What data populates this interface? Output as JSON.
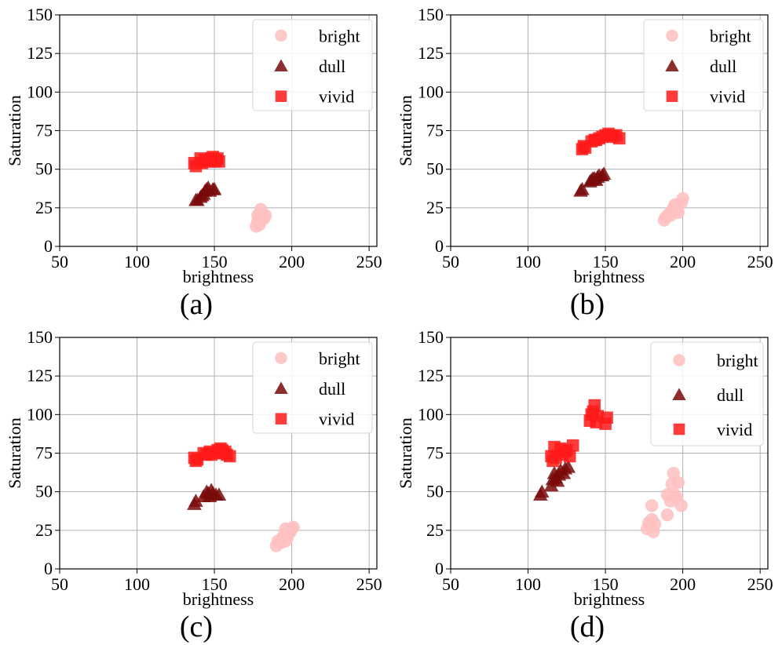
{
  "chart_data": [
    {
      "type": "scatter",
      "caption": "(a)",
      "xlabel": "brightness",
      "ylabel": "Saturation",
      "xlim": [
        50,
        255
      ],
      "ylim": [
        0,
        150
      ],
      "xticks": [
        "50",
        "100",
        "150",
        "200",
        "250"
      ],
      "yticks": [
        "0",
        "25",
        "50",
        "75",
        "100",
        "125",
        "150"
      ],
      "grid": true,
      "legend_position": "top-right",
      "series": [
        {
          "name": "bright",
          "marker": "circle",
          "color": "#ffc0c0",
          "points": [
            [
              177,
              13
            ],
            [
              178,
              16
            ],
            [
              179,
              19
            ],
            [
              180,
              17
            ],
            [
              181,
              21
            ],
            [
              182,
              18
            ],
            [
              180,
              24
            ],
            [
              183,
              20
            ],
            [
              178,
              20
            ],
            [
              179,
              14
            ],
            [
              181,
              19
            ]
          ]
        },
        {
          "name": "dull",
          "marker": "triangle",
          "color": "#7a0a0a",
          "points": [
            [
              138,
              30
            ],
            [
              139,
              30
            ],
            [
              141,
              32
            ],
            [
              142,
              33
            ],
            [
              143,
              34
            ],
            [
              145,
              37
            ],
            [
              146,
              38
            ],
            [
              147,
              36
            ],
            [
              149,
              37
            ],
            [
              150,
              37
            ],
            [
              144,
              36
            ]
          ]
        },
        {
          "name": "vivid",
          "marker": "square",
          "color": "#ff1a1a",
          "points": [
            [
              137,
              54
            ],
            [
              138,
              52
            ],
            [
              141,
              57
            ],
            [
              142,
              54
            ],
            [
              144,
              56
            ],
            [
              145,
              55
            ],
            [
              147,
              56
            ],
            [
              148,
              57
            ],
            [
              149,
              58
            ],
            [
              150,
              55
            ],
            [
              151,
              56
            ],
            [
              152,
              57
            ],
            [
              153,
              55
            ]
          ]
        }
      ]
    },
    {
      "type": "scatter",
      "caption": "(b)",
      "xlabel": "brightness",
      "ylabel": "Saturation",
      "xlim": [
        50,
        255
      ],
      "ylim": [
        0,
        150
      ],
      "xticks": [
        "50",
        "100",
        "150",
        "200",
        "250"
      ],
      "yticks": [
        "0",
        "25",
        "50",
        "75",
        "100",
        "125",
        "150"
      ],
      "grid": true,
      "legend_position": "top-right",
      "series": [
        {
          "name": "bright",
          "marker": "circle",
          "color": "#ffc0c0",
          "points": [
            [
              188,
              17
            ],
            [
              189,
              19
            ],
            [
              191,
              21
            ],
            [
              193,
              23
            ],
            [
              194,
              25
            ],
            [
              195,
              27
            ],
            [
              196,
              24
            ],
            [
              197,
              22
            ],
            [
              199,
              28
            ],
            [
              200,
              31
            ],
            [
              192,
              20
            ]
          ]
        },
        {
          "name": "dull",
          "marker": "triangle",
          "color": "#7a0a0a",
          "points": [
            [
              134,
              36
            ],
            [
              135,
              37
            ],
            [
              140,
              42
            ],
            [
              141,
              43
            ],
            [
              142,
              44
            ],
            [
              143,
              44
            ],
            [
              145,
              45
            ],
            [
              146,
              46
            ],
            [
              148,
              46
            ],
            [
              149,
              47
            ],
            [
              144,
              43
            ]
          ]
        },
        {
          "name": "vivid",
          "marker": "square",
          "color": "#ff1a1a",
          "points": [
            [
              135,
              63
            ],
            [
              136,
              65
            ],
            [
              137,
              64
            ],
            [
              141,
              68
            ],
            [
              143,
              69
            ],
            [
              144,
              69
            ],
            [
              146,
              70
            ],
            [
              148,
              71
            ],
            [
              150,
              72
            ],
            [
              152,
              73
            ],
            [
              153,
              72
            ],
            [
              155,
              71
            ],
            [
              157,
              72
            ],
            [
              159,
              70
            ]
          ]
        }
      ]
    },
    {
      "type": "scatter",
      "caption": "(c)",
      "xlabel": "brightness",
      "ylabel": "Saturation",
      "xlim": [
        50,
        255
      ],
      "ylim": [
        0,
        150
      ],
      "xticks": [
        "50",
        "100",
        "150",
        "200",
        "250"
      ],
      "yticks": [
        "0",
        "25",
        "50",
        "75",
        "100",
        "125",
        "150"
      ],
      "grid": true,
      "legend_position": "top-right",
      "series": [
        {
          "name": "bright",
          "marker": "circle",
          "color": "#ffc0c0",
          "points": [
            [
              190,
              15
            ],
            [
              191,
              18
            ],
            [
              193,
              17
            ],
            [
              194,
              20
            ],
            [
              195,
              22
            ],
            [
              196,
              26
            ],
            [
              197,
              20
            ],
            [
              198,
              23
            ],
            [
              199,
              24
            ],
            [
              200,
              26
            ],
            [
              201,
              27
            ],
            [
              196,
              18
            ]
          ]
        },
        {
          "name": "dull",
          "marker": "triangle",
          "color": "#7a0a0a",
          "points": [
            [
              137,
              42
            ],
            [
              138,
              44
            ],
            [
              143,
              47
            ],
            [
              145,
              50
            ],
            [
              146,
              49
            ],
            [
              148,
              51
            ],
            [
              149,
              49
            ],
            [
              151,
              48
            ],
            [
              153,
              48
            ],
            [
              147,
              47
            ]
          ]
        },
        {
          "name": "vivid",
          "marker": "square",
          "color": "#ff1a1a",
          "points": [
            [
              137,
              72
            ],
            [
              138,
              70
            ],
            [
              139,
              71
            ],
            [
              143,
              75
            ],
            [
              145,
              74
            ],
            [
              147,
              76
            ],
            [
              148,
              74
            ],
            [
              150,
              75
            ],
            [
              152,
              77
            ],
            [
              154,
              78
            ],
            [
              155,
              77
            ],
            [
              157,
              76
            ],
            [
              158,
              74
            ],
            [
              160,
              73
            ],
            [
              156,
              75
            ]
          ]
        }
      ]
    },
    {
      "type": "scatter",
      "caption": "(d)",
      "xlabel": "brightness",
      "ylabel": "Saturation",
      "xlim": [
        50,
        255
      ],
      "ylim": [
        0,
        150
      ],
      "xticks": [
        "50",
        "100",
        "150",
        "200",
        "250"
      ],
      "yticks": [
        "0",
        "25",
        "50",
        "75",
        "100",
        "125",
        "150"
      ],
      "grid": true,
      "legend_position": "top-right",
      "series": [
        {
          "name": "bright",
          "marker": "circle",
          "color": "#ffc0c0",
          "points": [
            [
              177,
              26
            ],
            [
              178,
              30
            ],
            [
              179,
              28
            ],
            [
              180,
              32
            ],
            [
              181,
              24
            ],
            [
              182,
              29
            ],
            [
              180,
              41
            ],
            [
              190,
              35
            ],
            [
              190,
              48
            ],
            [
              192,
              44
            ],
            [
              193,
              55
            ],
            [
              194,
              62
            ],
            [
              195,
              48
            ],
            [
              196,
              46
            ],
            [
              197,
              56
            ],
            [
              199,
              41
            ]
          ]
        },
        {
          "name": "dull",
          "marker": "triangle",
          "color": "#7a0a0a",
          "points": [
            [
              108,
              48
            ],
            [
              109,
              50
            ],
            [
              115,
              54
            ],
            [
              116,
              58
            ],
            [
              117,
              62
            ],
            [
              118,
              59
            ],
            [
              120,
              61
            ],
            [
              121,
              64
            ],
            [
              123,
              62
            ],
            [
              124,
              65
            ],
            [
              126,
              66
            ],
            [
              119,
              57
            ]
          ]
        },
        {
          "name": "vivid",
          "marker": "square",
          "color": "#ff1a1a",
          "points": [
            [
              115,
              73
            ],
            [
              116,
              70
            ],
            [
              117,
              79
            ],
            [
              118,
              72
            ],
            [
              121,
              78
            ],
            [
              122,
              74
            ],
            [
              124,
              76
            ],
            [
              125,
              77
            ],
            [
              127,
              73
            ],
            [
              129,
              80
            ],
            [
              140,
              96
            ],
            [
              141,
              100
            ],
            [
              142,
              102
            ],
            [
              143,
              106
            ],
            [
              144,
              95
            ],
            [
              145,
              99
            ],
            [
              150,
              94
            ],
            [
              151,
              98
            ]
          ]
        }
      ]
    }
  ]
}
